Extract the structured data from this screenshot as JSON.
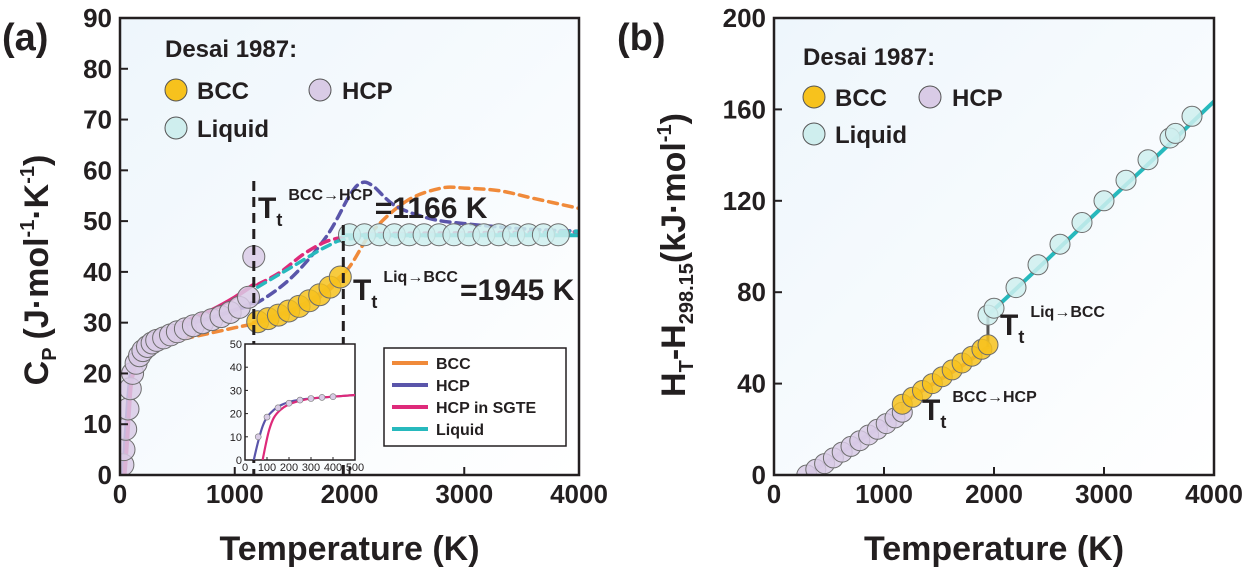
{
  "chart_data": [
    {
      "panel_label": "(a)",
      "type": "line",
      "xlabel": "Temperature (K)",
      "ylabel": "C",
      "ylabel_sub": "P",
      "ylabel_unit": "(J·mol",
      "ylabel_unit_sup1": "-1",
      "ylabel_unit_mid": "·K",
      "ylabel_unit_sup2": "-1",
      "ylabel_unit_end": ")",
      "xlim": [
        0,
        4000
      ],
      "ylim": [
        0,
        90
      ],
      "xticks": [
        "0",
        "1000",
        "2000",
        "3000",
        "4000"
      ],
      "yticks": [
        "0",
        "10",
        "20",
        "30",
        "40",
        "50",
        "60",
        "70",
        "80",
        "90"
      ],
      "legend_title": "Desai 1987:",
      "marker_legend": [
        {
          "name": "BCC",
          "color": "#f7c21d"
        },
        {
          "name": "HCP",
          "color": "#d9cbe6"
        },
        {
          "name": "Liquid",
          "color": "#cfeeee"
        }
      ],
      "line_legend": [
        {
          "name": "BCC",
          "color": "#f08a3a"
        },
        {
          "name": "HCP",
          "color": "#5a55aa"
        },
        {
          "name": "HCP in SGTE",
          "color": "#de2a7a"
        },
        {
          "name": "Liquid",
          "color": "#27b9bd"
        }
      ],
      "annotations": [
        {
          "base": "T",
          "sub": "t",
          "sup": "BCC→HCP",
          "text": "=1166 K",
          "x": 1166
        },
        {
          "base": "T",
          "sub": "t",
          "sup": "Liq→BCC",
          "text": "=1945 K",
          "x": 1945
        }
      ],
      "series": [
        {
          "name": "BCC (dashed)",
          "color": "#f08a3a",
          "dashed": true,
          "x": [
            100,
            200,
            500,
            800,
            1000,
            1200,
            1500,
            1800,
            2000,
            2200,
            2500,
            2800,
            3000,
            3300,
            3600,
            4000
          ],
          "y": [
            22,
            24.5,
            26.5,
            28,
            29,
            30,
            32,
            36,
            41,
            48,
            54,
            56.5,
            56.5,
            56,
            54.5,
            52.5
          ]
        },
        {
          "name": "HCP (dashed)",
          "color": "#5a55aa",
          "dashed": true,
          "x": [
            200,
            500,
            800,
            1000,
            1200,
            1500,
            1800,
            2000,
            2100,
            2200,
            2400,
            2700,
            3000,
            3500,
            4000
          ],
          "y": [
            25.5,
            29,
            31,
            32.5,
            34,
            39,
            47,
            55,
            57.5,
            57,
            53,
            50.5,
            49.5,
            48.5,
            48
          ]
        },
        {
          "name": "HCP in SGTE (dashed)",
          "color": "#de2a7a",
          "dashed": true,
          "x": [
            1200,
            1400,
            1600,
            1800,
            2000,
            2200,
            2500,
            3000,
            3500,
            4000
          ],
          "y": [
            37.5,
            40,
            43.5,
            46,
            47,
            47.5,
            47.6,
            47.7,
            47.8,
            47.9
          ]
        },
        {
          "name": "Liquid (dashed)",
          "color": "#27b9bd",
          "dashed": true,
          "x": [
            1200,
            1500,
            1800,
            2000,
            2500,
            3000,
            3500,
            4000
          ],
          "y": [
            37,
            41,
            45,
            46.5,
            47,
            47.3,
            47.6,
            48
          ]
        },
        {
          "name": "HCP",
          "color": "#5a55aa",
          "dashed": false,
          "x": [
            25,
            50,
            75,
            100,
            150,
            200,
            300,
            500,
            800,
            1000,
            1166
          ],
          "y": [
            0,
            8,
            16,
            21,
            23.5,
            25,
            26.5,
            29,
            31,
            32.5,
            34
          ]
        },
        {
          "name": "HCP in SGTE",
          "color": "#de2a7a",
          "dashed": false,
          "x": [
            40,
            60,
            80,
            100,
            150,
            200,
            300,
            500,
            800,
            1000,
            1166
          ],
          "y": [
            0,
            6,
            13,
            18.5,
            22.5,
            24.5,
            26.5,
            29.5,
            32.5,
            35,
            37.5
          ]
        },
        {
          "name": "BCC",
          "color": "#f08a3a",
          "dashed": false,
          "x": [
            1166,
            1300,
            1500,
            1700,
            1945
          ],
          "y": [
            30,
            31,
            32.5,
            35,
            39.5
          ]
        },
        {
          "name": "Liquid",
          "color": "#27b9bd",
          "dashed": false,
          "x": [
            1945,
            2300,
            2800,
            3300,
            3800,
            4000
          ],
          "y": [
            47.2,
            47.2,
            47.2,
            47.2,
            47.2,
            47.2
          ]
        }
      ],
      "markers": [
        {
          "phase": "HCP",
          "color": "#d9cbe6",
          "x": [
            25,
            35,
            50,
            70,
            90,
            110,
            140,
            170,
            200,
            240,
            280,
            320,
            380,
            440,
            500,
            570,
            640,
            720,
            800,
            880,
            960,
            1040,
            1120,
            1166
          ],
          "y": [
            2,
            5,
            9,
            13,
            17,
            20,
            22,
            23.5,
            24.5,
            25.3,
            26,
            26.5,
            27,
            27.6,
            28.2,
            28.8,
            29.4,
            30,
            30.6,
            31.2,
            32,
            33,
            35,
            43
          ]
        },
        {
          "phase": "BCC",
          "color": "#f7c21d",
          "x": [
            1200,
            1290,
            1380,
            1470,
            1560,
            1650,
            1740,
            1830,
            1920
          ],
          "y": [
            30.2,
            30.8,
            31.5,
            32.3,
            33.2,
            34.3,
            35.5,
            37,
            39
          ]
        },
        {
          "phase": "Liquid",
          "color": "#cfeeee",
          "x": [
            2000,
            2130,
            2260,
            2390,
            2520,
            2650,
            2780,
            2910,
            3040,
            3170,
            3300,
            3430,
            3560,
            3690,
            3820
          ],
          "y": [
            47.3,
            47.3,
            47.3,
            47.3,
            47.3,
            47.3,
            47.3,
            47.3,
            47.3,
            47.3,
            47.3,
            47.3,
            47.3,
            47.3,
            47.3
          ]
        }
      ],
      "inset": {
        "xlim": [
          0,
          500
        ],
        "ylim": [
          0,
          50
        ],
        "xticks": [
          "0",
          "100",
          "200",
          "300",
          "400",
          "500"
        ],
        "yticks": [
          "0",
          "10",
          "20",
          "30",
          "40",
          "50"
        ],
        "series": [
          {
            "name": "HCP",
            "color": "#5a55aa",
            "x": [
              40,
              60,
              80,
              100,
              130,
              160,
              200,
              250,
              300,
              400,
              500
            ],
            "y": [
              0,
              8,
              14.5,
              18.5,
              21.5,
              23.5,
              25,
              26,
              26.5,
              27.3,
              28
            ]
          },
          {
            "name": "HCP in SGTE",
            "color": "#de2a7a",
            "x": [
              80,
              95,
              110,
              130,
              160,
              200,
              250,
              300,
              400,
              500
            ],
            "y": [
              0,
              7,
              13,
              18,
              21.5,
              24,
              25.5,
              26.5,
              27.3,
              28
            ]
          }
        ],
        "markers": {
          "color": "#d9cbe6",
          "x": [
            60,
            100,
            150,
            200,
            250,
            300,
            350,
            400
          ],
          "y": [
            10,
            18.5,
            22.5,
            24.5,
            25.8,
            26.5,
            27,
            27.3
          ]
        }
      }
    },
    {
      "panel_label": "(b)",
      "type": "line",
      "xlabel": "Temperature (K)",
      "ylabel": "H",
      "ylabel_sub1": "T",
      "ylabel_mid": "-H",
      "ylabel_sub2": "298.15",
      "ylabel_unit": "(kJ·mol",
      "ylabel_unit_sup": "-1",
      "ylabel_unit_end": ")",
      "xlim": [
        0,
        4000
      ],
      "ylim": [
        0,
        200
      ],
      "xticks": [
        "0",
        "1000",
        "2000",
        "3000",
        "4000"
      ],
      "yticks": [
        "0",
        "40",
        "80",
        "120",
        "160",
        "200"
      ],
      "legend_title": "Desai 1987:",
      "marker_legend": [
        {
          "name": "BCC",
          "color": "#f7c21d"
        },
        {
          "name": "HCP",
          "color": "#d9cbe6"
        },
        {
          "name": "Liquid",
          "color": "#cfeeee"
        }
      ],
      "annotations": [
        {
          "base": "T",
          "sub": "t",
          "sup": "Liq→BCC",
          "x": 1945
        },
        {
          "base": "T",
          "sub": "t",
          "sup": "BCC→HCP",
          "x": 1166
        }
      ],
      "series": [
        {
          "name": "HCP",
          "color": "#5a55aa",
          "x": [
            298,
            600,
            900,
            1166
          ],
          "y": [
            0,
            9.5,
            19,
            27.5
          ]
        },
        {
          "name": "BCC",
          "color": "#f08a3a",
          "x": [
            1166,
            1400,
            1700,
            1945
          ],
          "y": [
            31,
            38.5,
            47.5,
            56
          ]
        },
        {
          "name": "Liquid",
          "color": "#27b9bd",
          "x": [
            1945,
            2500,
            3000,
            3500,
            4000
          ],
          "y": [
            70,
            95,
            118,
            140.5,
            163.5
          ]
        }
      ],
      "steps": [
        {
          "x": 1166,
          "y": [
            27.5,
            31
          ]
        },
        {
          "x": 1945,
          "y": [
            56,
            70
          ]
        }
      ],
      "markers": [
        {
          "phase": "HCP",
          "color": "#d9cbe6",
          "x": [
            298,
            380,
            460,
            540,
            620,
            700,
            780,
            860,
            940,
            1020,
            1100,
            1166
          ],
          "y": [
            0,
            2.5,
            5,
            7.5,
            10,
            12.5,
            15,
            17.5,
            20,
            22.5,
            25,
            27.5
          ]
        },
        {
          "phase": "BCC",
          "color": "#f7c21d",
          "x": [
            1166,
            1260,
            1350,
            1440,
            1530,
            1620,
            1710,
            1800,
            1890,
            1945
          ],
          "y": [
            31,
            34,
            37,
            40,
            43,
            46,
            49,
            52,
            55,
            57
          ]
        },
        {
          "phase": "Liquid",
          "color": "#cfeeee",
          "x": [
            1945,
            2000,
            2200,
            2400,
            2600,
            2800,
            3000,
            3200,
            3400,
            3600,
            3650,
            3800
          ],
          "y": [
            70,
            73,
            82,
            92,
            101,
            110.5,
            120,
            129,
            138,
            147.5,
            149.5,
            157
          ]
        }
      ]
    }
  ]
}
